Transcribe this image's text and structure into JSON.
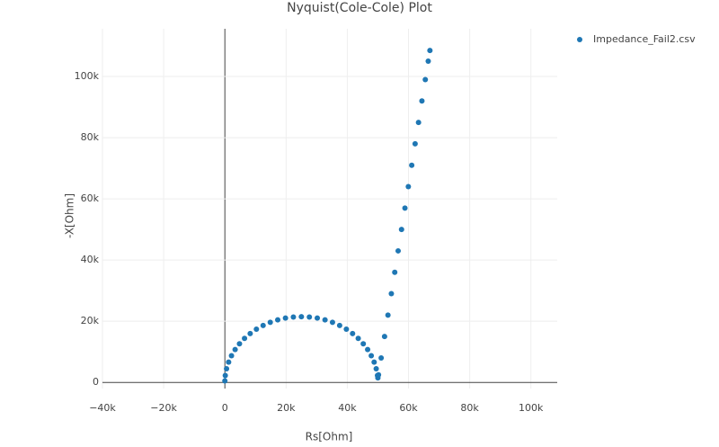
{
  "chart_data": {
    "type": "scatter",
    "title": "Nyquist(Cole-Cole) Plot",
    "x_label": "Rs[Ohm]",
    "y_label": "-X[Ohm]",
    "x": [
      0,
      137,
      548,
      1224,
      2162,
      3349,
      4775,
      6422,
      8272,
      10305,
      12500,
      14832,
      17275,
      19802,
      22387,
      25000,
      27613,
      30198,
      32725,
      35168,
      37500,
      39695,
      41728,
      43578,
      45225,
      46651,
      47838,
      48776,
      49452,
      49863,
      50000,
      50200,
      51072,
      52181,
      53291,
      54400,
      55510,
      56619,
      57729,
      58838,
      59948,
      61057,
      62167,
      63276,
      64386,
      65495,
      66446,
      67001
    ],
    "series": [
      {
        "name": "Impedance_Fail2.csv",
        "color": "#1f77b4",
        "values": [
          500,
          2247,
          4470,
          6644,
          8744,
          10750,
          12638,
          14386,
          15977,
          17394,
          18619,
          19640,
          20449,
          21030,
          21382,
          21500,
          21382,
          21030,
          20449,
          19640,
          18619,
          17394,
          15977,
          14386,
          12638,
          10750,
          8744,
          6644,
          4470,
          2247,
          1500,
          2500,
          8000,
          15000,
          22000,
          29000,
          36000,
          43000,
          50000,
          57000,
          64000,
          71000,
          78000,
          85000,
          92000,
          99000,
          105000,
          108500
        ]
      }
    ],
    "xlim": [
      -40000,
      108600
    ],
    "ylim": [
      -2000,
      115600
    ],
    "xticks": [
      {
        "value": -40000,
        "label": "−40k"
      },
      {
        "value": -20000,
        "label": "−20k"
      },
      0,
      {
        "value": 20000,
        "label": "20k"
      },
      {
        "value": 40000,
        "label": "40k"
      },
      {
        "value": 60000,
        "label": "60k"
      },
      {
        "value": 80000,
        "label": "80k"
      },
      {
        "value": 100000,
        "label": "100k"
      }
    ],
    "yticks": [
      0,
      {
        "value": 20000,
        "label": "20k"
      },
      {
        "value": 40000,
        "label": "40k"
      },
      {
        "value": 60000,
        "label": "60k"
      },
      {
        "value": 80000,
        "label": "80k"
      },
      {
        "value": 100000,
        "label": "100k"
      }
    ],
    "grid": true,
    "legend": "top-right"
  }
}
